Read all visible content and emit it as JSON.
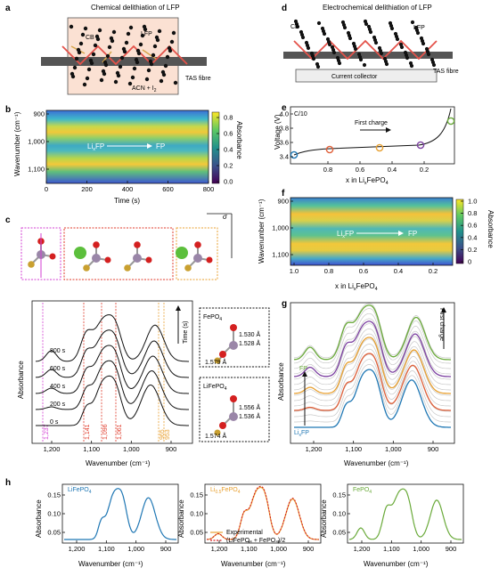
{
  "panels": {
    "a": "a",
    "b": "b",
    "c": "c",
    "d": "d",
    "e": "e",
    "f": "f",
    "g": "g",
    "h": "h"
  },
  "panel_a": {
    "title": "Chemical delithiation of LFP",
    "cb": "CB",
    "lfp": "LFP",
    "solvent": "ACN + I",
    "solvent_sub": "2",
    "fibre": "TAS fibre"
  },
  "panel_d": {
    "title": "Electrochemical delithiation of LFP",
    "cb": "CB",
    "lfp": "LFP",
    "collector": "Current collector",
    "fibre": "TAS fibre"
  },
  "panel_b": {
    "ylabel": "Wavenumber (cm⁻¹)",
    "xlabel": "Time (s)",
    "yticks": [
      "900",
      "1,000",
      "1,100"
    ],
    "xticks": [
      "0",
      "200",
      "400",
      "600",
      "800"
    ],
    "cbar_label": "Absorbance",
    "cbar_ticks": [
      "0.8",
      "0.6",
      "0.4",
      "0.2",
      "0.0"
    ],
    "overlay_from": "Li",
    "overlay_from_sub": "x",
    "overlay_from_tail": "FP",
    "overlay_to": "FP"
  },
  "panel_e": {
    "rate": "C/10",
    "ylabel": "Voltage (V)",
    "yticks": [
      "4.0",
      "3.8",
      "3.6",
      "3.4"
    ],
    "xticks": [
      "0.8",
      "0.6",
      "0.4",
      "0.2"
    ],
    "xlabel_pre": "x in Li",
    "xlabel_sub": "x",
    "xlabel_post": "FePO",
    "xlabel_sub2": "4",
    "arrow_label": "First charge",
    "marker_colors": [
      "#1f77b4",
      "#e0603a",
      "#e8a030",
      "#7b3fa0",
      "#6aaa3a"
    ]
  },
  "panel_f": {
    "ylabel": "Wavenumber (cm⁻¹)",
    "yticks": [
      "900",
      "1,000",
      "1,100"
    ],
    "xticks": [
      "1.0",
      "0.8",
      "0.6",
      "0.4",
      "0.2"
    ],
    "xlabel_pre": "x in Li",
    "xlabel_sub": "x",
    "xlabel_post": "FePO",
    "xlabel_sub2": "4",
    "cbar_label": "Absorbance",
    "cbar_ticks": [
      "1.0",
      "0.8",
      "0.6",
      "0.4",
      "0.2",
      "0"
    ],
    "overlay_from": "Li",
    "overlay_from_sub": "x",
    "overlay_from_tail": "FP",
    "overlay_to": "FP"
  },
  "panel_c": {
    "sigma": "σ",
    "ylabel": "Absorbance",
    "xlabel": "Wavenumber (cm⁻¹)",
    "xticks": [
      "1,200",
      "1,100",
      "1,000",
      "900"
    ],
    "time_labels": [
      "800 s",
      "600 s",
      "400 s",
      "200 s",
      "0 s"
    ],
    "time_axis": "Time (s)",
    "vlines": [
      "1,237",
      "1,141",
      "1,096",
      "1,061",
      "965",
      "953"
    ],
    "fepo4_title": "FePO",
    "fepo4_sub": "4",
    "fepo4_bonds": [
      "1.530 Å",
      "1.528 Å",
      "1.579 Å"
    ],
    "lifepo4_title": "LiFePO",
    "lifepo4_sub": "4",
    "lifepo4_bonds": [
      "1.556 Å",
      "1.536 Å",
      "1.574 Å"
    ]
  },
  "panel_g": {
    "ylabel": "Absorbance",
    "xlabel": "Wavenumber (cm⁻¹)",
    "xticks": [
      "1,200",
      "1,100",
      "1,000",
      "900"
    ],
    "arrow_label": "First charge",
    "fp": "FP",
    "lixfp_pre": "Li",
    "lixfp_sub": "x",
    "lixfp_post": "FP",
    "colors": [
      "#1f77b4",
      "#e0603a",
      "#e8a030",
      "#7b3fa0",
      "#6aaa3a"
    ]
  },
  "panel_h": {
    "p1": {
      "label": "LiFePO",
      "label_sub": "4",
      "color": "#1f77b4",
      "yticks": [
        "0.15",
        "0.10",
        "0.05"
      ],
      "xticks": [
        "1,200",
        "1,100",
        "1,000",
        "900"
      ]
    },
    "p2": {
      "label": "Li",
      "label_sub": "0.5",
      "label_post": "FePO",
      "label_sub2": "4",
      "color": "#e8a030",
      "yticks": [
        "0.15",
        "0.10",
        "0.05"
      ],
      "xticks": [
        "1,200",
        "1,100",
        "1,000",
        "900"
      ],
      "legend_exp": "Experimental",
      "legend_avg": "(LiFePO₄ + FePO₄)/2"
    },
    "p3": {
      "label": "FePO",
      "label_sub": "4",
      "color": "#6aaa3a",
      "yticks": [
        "0.15",
        "0.10",
        "0.05"
      ],
      "xticks": [
        "1,200",
        "1,100",
        "1,000",
        "900"
      ]
    },
    "ylabel": "Absorbance",
    "xlabel": "Wavenumber (cm⁻¹)"
  }
}
